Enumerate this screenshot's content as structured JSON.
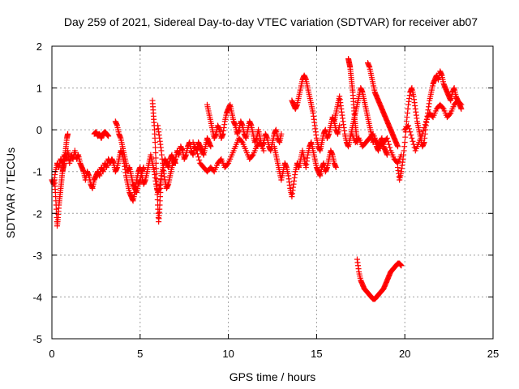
{
  "chart_data": {
    "type": "scatter",
    "title": "Day 259 of 2021, Sidereal Day-to-day VTEC variation (SDTVAR) for receiver ab07",
    "xlabel": "GPS time / hours",
    "ylabel": "SDTVAR / TECUs",
    "xlim": [
      0,
      25
    ],
    "ylim": [
      -5,
      2
    ],
    "xticks": [
      0,
      5,
      10,
      15,
      20,
      25
    ],
    "xtick_labels": [
      "0",
      "5",
      "10",
      "15",
      "20",
      "25"
    ],
    "yticks": [
      -5,
      -4,
      -3,
      -2,
      -1,
      0,
      1,
      2
    ],
    "ytick_labels": [
      "-5",
      "-4",
      "-3",
      "-2",
      "-1",
      "0",
      "1",
      "2"
    ],
    "grid": true,
    "marker": "+",
    "color": "#ff0000",
    "series": [
      {
        "name": "track-main",
        "x": [
          0.0,
          0.1,
          0.2,
          0.3,
          0.4,
          0.5,
          0.6,
          0.7,
          0.8,
          0.9,
          1.0,
          1.1,
          1.2,
          1.3,
          1.4,
          1.5,
          1.6,
          1.7,
          1.8,
          1.9,
          2.0,
          2.1,
          2.2,
          2.3,
          2.4,
          2.5,
          2.6,
          2.7,
          2.8,
          2.9,
          3.0,
          3.1,
          3.2,
          3.3,
          3.4,
          3.5,
          3.6,
          3.7,
          3.8,
          3.9,
          4.0,
          4.1,
          4.2,
          4.3,
          4.4,
          4.5,
          4.6,
          4.7,
          4.8,
          4.9,
          5.0,
          5.1,
          5.2,
          5.3,
          5.4,
          5.5,
          5.6,
          5.7,
          5.8,
          5.9,
          6.0,
          6.1,
          6.2,
          6.3,
          6.4,
          6.5,
          6.6,
          6.7,
          6.8,
          6.9,
          7.0,
          7.1,
          7.2,
          7.3,
          7.4,
          7.5,
          7.6,
          7.7,
          7.8,
          7.9,
          8.0,
          8.1,
          8.2,
          8.3,
          8.4,
          8.5,
          8.6,
          8.7,
          8.8,
          8.9,
          9.0
        ],
        "y": [
          -1.2,
          -1.3,
          -1.0,
          -0.8,
          -0.9,
          -0.7,
          -0.8,
          -0.6,
          -0.7,
          -0.5,
          -0.8,
          -0.6,
          -0.7,
          -0.5,
          -0.7,
          -0.6,
          -0.8,
          -0.9,
          -1.0,
          -1.2,
          -1.0,
          -1.1,
          -1.3,
          -1.4,
          -1.2,
          -1.1,
          -1.0,
          -1.1,
          -0.9,
          -1.0,
          -0.8,
          -0.9,
          -0.7,
          -0.8,
          -0.7,
          -0.8,
          -1.0,
          -0.9,
          -0.7,
          -0.5,
          -0.6,
          -0.8,
          -1.1,
          -1.3,
          -1.5,
          -1.6,
          -1.7,
          -1.5,
          -1.2,
          -1.0,
          -0.9,
          -1.1,
          -1.3,
          -1.2,
          -1.0,
          -0.8,
          -0.6,
          -0.8,
          -1.0,
          -1.3,
          -1.5,
          -1.4,
          -1.1,
          -0.9,
          -0.7,
          -0.8,
          -0.9,
          -0.7,
          -0.6,
          -0.8,
          -0.7,
          -0.5,
          -0.6,
          -0.4,
          -0.5,
          -0.7,
          -0.6,
          -0.4,
          -0.3,
          -0.5,
          -0.6,
          -0.4,
          -0.5,
          -0.3,
          -0.4,
          -0.5,
          -0.6,
          -0.4,
          -0.2,
          -0.3,
          -0.4
        ]
      },
      {
        "name": "track-start-drop",
        "x": [
          0.15,
          0.2,
          0.25,
          0.3,
          0.35,
          0.4,
          0.45,
          0.5,
          0.55,
          0.6,
          0.65,
          0.7,
          0.75,
          0.8,
          0.85,
          0.9
        ],
        "y": [
          -1.2,
          -1.5,
          -1.9,
          -2.3,
          -2.1,
          -1.8,
          -1.6,
          -1.4,
          -1.2,
          -1.0,
          -0.9,
          -0.8,
          -0.6,
          -0.4,
          -0.2,
          -0.1
        ]
      },
      {
        "name": "track-early-peak",
        "x": [
          2.4,
          2.5,
          2.6,
          2.7,
          2.8,
          2.9,
          3.0,
          3.1,
          3.2
        ],
        "y": [
          -0.1,
          -0.05,
          -0.15,
          -0.1,
          -0.2,
          -0.1,
          -0.05,
          -0.1,
          -0.15
        ]
      },
      {
        "name": "track-hour4",
        "x": [
          3.6,
          3.7,
          3.8,
          3.9,
          4.0,
          4.1,
          4.2,
          4.3,
          4.4,
          4.5,
          4.6,
          4.7,
          4.8,
          4.9,
          5.0,
          5.1,
          5.2
        ],
        "y": [
          0.2,
          0.1,
          -0.1,
          -0.2,
          -0.4,
          -0.6,
          -0.8,
          -1.0,
          -0.9,
          -1.1,
          -1.3,
          -1.4,
          -1.5,
          -1.3,
          -1.2,
          -1.0,
          -0.9
        ]
      },
      {
        "name": "track-hour6-spike",
        "x": [
          5.7,
          5.75,
          5.8,
          5.85,
          5.9,
          5.95,
          6.0,
          6.05,
          6.1,
          6.15,
          6.2
        ],
        "y": [
          0.7,
          0.4,
          0.1,
          -0.3,
          -0.8,
          -1.3,
          -1.8,
          -2.2,
          -1.9,
          -1.5,
          -1.1
        ]
      },
      {
        "name": "track-hour6-second",
        "x": [
          6.0,
          6.1,
          6.2,
          6.3,
          6.4,
          6.5,
          6.6,
          6.7,
          6.8,
          6.9,
          7.0
        ],
        "y": [
          0.1,
          -0.2,
          -0.5,
          -0.9,
          -1.2,
          -1.4,
          -1.3,
          -1.1,
          -0.9,
          -0.7,
          -0.8
        ]
      },
      {
        "name": "track-hour8-9",
        "x": [
          8.8,
          8.9,
          9.0,
          9.1,
          9.2,
          9.3,
          9.4,
          9.5,
          9.6,
          9.7,
          9.8,
          9.9,
          10.0,
          10.1,
          10.2,
          10.3,
          10.4,
          10.5,
          10.6,
          10.7,
          10.8,
          10.9,
          11.0,
          11.1,
          11.2,
          11.3,
          11.4,
          11.5,
          11.6,
          11.7,
          11.8,
          11.9,
          12.0,
          12.1,
          12.2,
          12.3,
          12.4,
          12.5,
          12.6,
          12.7,
          12.8,
          12.9,
          13.0
        ],
        "y": [
          0.6,
          0.4,
          0.2,
          0.0,
          -0.2,
          -0.1,
          0.1,
          0.0,
          -0.2,
          -0.1,
          0.2,
          0.4,
          0.5,
          0.6,
          0.4,
          0.2,
          0.1,
          -0.1,
          0.0,
          0.2,
          0.1,
          -0.1,
          -0.2,
          0.0,
          0.2,
          0.1,
          -0.1,
          -0.3,
          -0.2,
          0.0,
          -0.2,
          -0.4,
          -0.3,
          -0.1,
          -0.2,
          -0.4,
          -0.5,
          -0.3,
          -0.1,
          0.0,
          -0.2,
          -0.3,
          -0.1
        ]
      },
      {
        "name": "track-hour9-lower",
        "x": [
          8.0,
          8.2,
          8.4,
          8.6,
          8.8,
          9.0,
          9.2,
          9.4,
          9.6,
          9.8,
          10.0,
          10.2,
          10.4,
          10.6,
          10.8,
          11.0,
          11.2,
          11.4,
          11.6,
          11.8,
          12.0
        ],
        "y": [
          -0.3,
          -0.5,
          -0.8,
          -0.9,
          -1.0,
          -0.9,
          -1.0,
          -0.8,
          -0.7,
          -0.9,
          -0.8,
          -0.6,
          -0.4,
          -0.2,
          -0.3,
          -0.5,
          -0.7,
          -0.6,
          -0.4,
          -0.3,
          -0.5
        ]
      },
      {
        "name": "track-hour12-14",
        "x": [
          12.6,
          12.7,
          12.8,
          12.9,
          13.0,
          13.1,
          13.2,
          13.3,
          13.4,
          13.5,
          13.6,
          13.7,
          13.8,
          13.9,
          14.0,
          14.1,
          14.2,
          14.3,
          14.4,
          14.5,
          14.6,
          14.7,
          14.8,
          14.9,
          15.0,
          15.1,
          15.2,
          15.3,
          15.4,
          15.5,
          15.6,
          15.7,
          15.8,
          15.9,
          16.0,
          16.1
        ],
        "y": [
          -0.4,
          -0.6,
          -0.8,
          -1.0,
          -1.2,
          -1.0,
          -0.8,
          -0.9,
          -1.1,
          -1.4,
          -1.6,
          -1.3,
          -1.0,
          -0.8,
          -0.9,
          -0.7,
          -0.5,
          -0.7,
          -0.9,
          -0.6,
          -0.4,
          -0.3,
          -0.5,
          -0.7,
          -0.9,
          -1.0,
          -1.1,
          -0.9,
          -0.8,
          -1.0,
          -0.9,
          -0.7,
          -0.5,
          -0.6,
          -0.8,
          -0.9
        ]
      },
      {
        "name": "track-hour13-peak",
        "x": [
          13.6,
          13.7,
          13.8,
          13.9,
          14.0,
          14.1,
          14.2,
          14.3,
          14.4,
          14.5,
          14.6,
          14.7,
          14.8,
          14.9,
          15.0,
          15.1,
          15.2,
          15.3,
          15.4,
          15.5,
          15.6,
          15.7,
          15.8,
          15.9,
          16.0,
          16.1,
          16.2,
          16.3
        ],
        "y": [
          0.7,
          0.6,
          0.5,
          0.6,
          0.8,
          1.0,
          1.2,
          1.3,
          1.2,
          1.0,
          0.8,
          0.6,
          0.4,
          0.1,
          -0.2,
          -0.4,
          -0.5,
          -0.3,
          -0.1,
          0.0,
          -0.2,
          -0.1,
          0.1,
          0.3,
          0.2,
          0.0,
          -0.1,
          0.1
        ]
      },
      {
        "name": "track-hour16-17",
        "x": [
          16.0,
          16.1,
          16.2,
          16.3,
          16.4,
          16.5,
          16.6,
          16.7,
          16.8,
          16.9,
          17.0,
          17.1,
          17.2,
          17.3,
          17.4,
          17.5,
          17.6,
          17.7,
          17.8,
          17.9,
          18.0,
          18.1,
          18.2,
          18.3,
          18.4,
          18.5,
          18.6,
          18.7,
          18.8,
          18.9,
          19.0
        ],
        "y": [
          0.2,
          0.4,
          0.6,
          0.8,
          0.5,
          0.2,
          -0.1,
          -0.3,
          -0.4,
          -0.2,
          0.0,
          0.2,
          0.4,
          0.6,
          0.8,
          1.0,
          0.9,
          0.7,
          0.5,
          0.3,
          0.1,
          -0.1,
          -0.3,
          -0.2,
          -0.4,
          -0.5,
          -0.3,
          -0.2,
          -0.4,
          -0.5,
          -0.6
        ]
      },
      {
        "name": "track-hour17-spike",
        "x": [
          16.8,
          16.85,
          16.9,
          16.95,
          17.0,
          17.05,
          17.1,
          17.15,
          17.2,
          17.25,
          17.3
        ],
        "y": [
          1.7,
          1.6,
          1.5,
          1.3,
          1.1,
          0.9,
          0.6,
          0.3,
          0.1,
          -0.1,
          -0.3
        ]
      },
      {
        "name": "track-hour18-spike",
        "x": [
          17.9,
          18.0,
          18.1,
          18.2,
          18.3,
          18.4,
          18.5,
          18.6,
          18.7,
          18.8,
          18.9,
          19.0,
          19.1,
          19.2,
          19.3,
          19.4,
          19.5,
          19.6
        ],
        "y": [
          1.6,
          1.5,
          1.3,
          1.1,
          0.9,
          0.8,
          0.7,
          0.6,
          0.5,
          0.4,
          0.3,
          0.2,
          0.1,
          0.0,
          -0.1,
          -0.2,
          -0.3,
          -0.4
        ]
      },
      {
        "name": "track-hour17-lower",
        "x": [
          17.0,
          17.2,
          17.4,
          17.6,
          17.8,
          18.0,
          18.2,
          18.4,
          18.6,
          18.8,
          19.0,
          19.2,
          19.4,
          19.6,
          19.8
        ],
        "y": [
          -0.1,
          -0.3,
          -0.2,
          -0.4,
          -0.3,
          -0.2,
          -0.1,
          -0.3,
          -0.4,
          -0.3,
          -0.2,
          -0.5,
          -0.7,
          -0.8,
          -0.6
        ]
      },
      {
        "name": "track-negative-arc",
        "x": [
          17.3,
          17.4,
          17.5,
          17.6,
          17.7,
          17.8,
          17.9,
          18.0,
          18.1,
          18.2,
          18.3,
          18.4,
          18.5,
          18.6,
          18.7,
          18.8,
          18.9,
          19.0,
          19.1,
          19.2,
          19.3,
          19.4,
          19.5,
          19.6,
          19.7,
          19.8
        ],
        "y": [
          -3.1,
          -3.4,
          -3.6,
          -3.7,
          -3.8,
          -3.85,
          -3.9,
          -3.95,
          -4.0,
          -4.05,
          -4.05,
          -4.0,
          -3.95,
          -3.9,
          -3.85,
          -3.8,
          -3.7,
          -3.6,
          -3.5,
          -3.4,
          -3.35,
          -3.3,
          -3.25,
          -3.2,
          -3.2,
          -3.25
        ]
      },
      {
        "name": "track-hour20-22",
        "x": [
          19.6,
          19.7,
          19.8,
          19.9,
          20.0,
          20.1,
          20.2,
          20.3,
          20.4,
          20.5,
          20.6,
          20.7,
          20.8,
          20.9,
          21.0,
          21.1,
          21.2,
          21.3,
          21.4,
          21.5,
          21.6,
          21.7,
          21.8,
          21.9,
          22.0,
          22.1,
          22.2,
          22.3,
          22.4,
          22.5,
          22.6,
          22.7,
          22.8,
          22.9,
          23.0,
          23.1,
          23.2
        ],
        "y": [
          -0.9,
          -1.2,
          -1.0,
          -0.7,
          -0.3,
          0.2,
          0.6,
          0.9,
          1.0,
          0.8,
          0.5,
          0.2,
          0.0,
          -0.2,
          -0.4,
          -0.3,
          0.1,
          0.4,
          0.7,
          0.9,
          1.1,
          1.2,
          1.3,
          1.2,
          1.4,
          1.3,
          1.1,
          1.0,
          0.9,
          0.8,
          0.7,
          0.9,
          1.0,
          0.8,
          0.7,
          0.6,
          0.5
        ]
      },
      {
        "name": "track-hour21-lower",
        "x": [
          20.0,
          20.2,
          20.4,
          20.6,
          20.8,
          21.0,
          21.2,
          21.4,
          21.6,
          21.8,
          22.0,
          22.2,
          22.4,
          22.6,
          22.8,
          23.0,
          23.2
        ],
        "y": [
          0.0,
          0.1,
          -0.2,
          -0.5,
          -0.3,
          -0.1,
          0.2,
          0.4,
          0.3,
          0.5,
          0.6,
          0.5,
          0.3,
          0.4,
          0.6,
          0.7,
          0.6
        ]
      }
    ]
  }
}
